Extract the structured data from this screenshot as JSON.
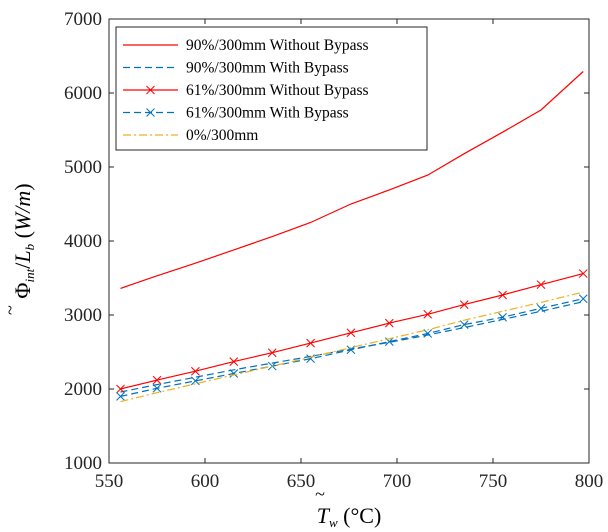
{
  "chart_data": {
    "type": "line",
    "title": "",
    "xlabel": "T̃w (°C)",
    "ylabel": "Φ̃int/Lb (W/m)",
    "xlim": [
      550,
      800
    ],
    "ylim": [
      1000,
      7000
    ],
    "xticks": [
      550,
      600,
      650,
      700,
      750,
      800
    ],
    "yticks": [
      1000,
      2000,
      3000,
      4000,
      5000,
      6000,
      7000
    ],
    "grid": false,
    "legend_position": "top-left",
    "series": [
      {
        "name": "90%/300mm Without Bypass",
        "color": "#ff0000",
        "line_style": "solid",
        "marker": "none",
        "x": [
          556,
          575,
          595,
          615,
          635,
          655,
          676,
          696,
          716,
          735,
          755,
          775,
          797
        ],
        "y": [
          3360,
          3530,
          3700,
          3880,
          4060,
          4250,
          4500,
          4690,
          4890,
          5180,
          5470,
          5770,
          6290
        ]
      },
      {
        "name": "90%/300mm With Bypass",
        "color": "#0072bd",
        "line_style": "dashed",
        "marker": "none",
        "x": [
          556,
          575,
          595,
          615,
          635,
          655,
          676,
          696,
          716,
          735,
          755,
          775,
          797
        ],
        "y": [
          1960,
          2060,
          2160,
          2260,
          2350,
          2440,
          2540,
          2630,
          2730,
          2830,
          2940,
          3050,
          3180
        ]
      },
      {
        "name": "61%/300mm Without Bypass",
        "color": "#ff0000",
        "line_style": "solid",
        "marker": "x",
        "x": [
          556,
          575,
          595,
          615,
          635,
          655,
          676,
          696,
          716,
          735,
          755,
          775,
          797
        ],
        "y": [
          2000,
          2120,
          2240,
          2370,
          2490,
          2620,
          2760,
          2890,
          3010,
          3140,
          3270,
          3410,
          3560
        ]
      },
      {
        "name": "61%/300mm With Bypass",
        "color": "#0072bd",
        "line_style": "dashed",
        "marker": "x",
        "x": [
          556,
          575,
          595,
          615,
          635,
          655,
          676,
          696,
          716,
          735,
          755,
          775,
          797
        ],
        "y": [
          1900,
          2010,
          2110,
          2210,
          2310,
          2410,
          2530,
          2640,
          2750,
          2870,
          2970,
          3090,
          3220
        ]
      },
      {
        "name": "0%/300mm",
        "color": "#edb120",
        "line_style": "dashdot",
        "marker": "none",
        "x": [
          556,
          575,
          595,
          615,
          635,
          655,
          676,
          696,
          716,
          735,
          755,
          775,
          797
        ],
        "y": [
          1830,
          1950,
          2070,
          2190,
          2310,
          2430,
          2560,
          2680,
          2800,
          2930,
          3050,
          3170,
          3310
        ]
      }
    ]
  }
}
